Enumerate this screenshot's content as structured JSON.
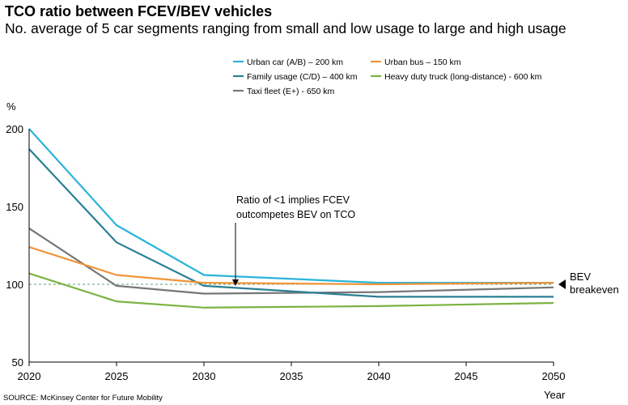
{
  "title": "TCO ratio between FCEV/BEV vehicles",
  "subtitle": "No. average of 5 car segments ranging from small and low usage to large and high usage",
  "source": "SOURCE: McKinsey Center for Future Mobility",
  "annotation": {
    "line1": "Ratio of <1 implies FCEV",
    "line2": "outcompetes BEV on TCO"
  },
  "breakeven": {
    "line1": "BEV",
    "line2": "breakeven",
    "value": 100
  },
  "chart_data": {
    "type": "line",
    "title": "TCO ratio between FCEV/BEV vehicles",
    "xlabel": "Year",
    "ylabel": "%",
    "x": [
      2020,
      2025,
      2030,
      2040,
      2050
    ],
    "xticks": [
      "2020",
      "2025",
      "2030",
      "2035",
      "2040",
      "2045",
      "2050"
    ],
    "yticks": [
      "50",
      "100",
      "150",
      "200"
    ],
    "xlim": [
      2020,
      2050
    ],
    "ylim": [
      50,
      200
    ],
    "grid": false,
    "legend_position": "top-right",
    "series": [
      {
        "name": "Urban car (A/B) – 200 km",
        "color": "#2ab4d9",
        "values": [
          200,
          138,
          106,
          101,
          101
        ]
      },
      {
        "name": "Urban bus – 150 km",
        "color": "#f0953a",
        "values": [
          124,
          106,
          101,
          100,
          101
        ]
      },
      {
        "name": "Family usage (C/D) – 400 km",
        "color": "#2a7f93",
        "values": [
          187,
          127,
          99,
          92,
          92
        ]
      },
      {
        "name": "Heavy duty truck (long-distance) - 600 km",
        "color": "#7cb342",
        "values": [
          107,
          89,
          85,
          86,
          88
        ]
      },
      {
        "name": "Taxi fleet (E+) - 650 km",
        "color": "#777777",
        "values": [
          136,
          99,
          94,
          95,
          98
        ]
      }
    ]
  }
}
